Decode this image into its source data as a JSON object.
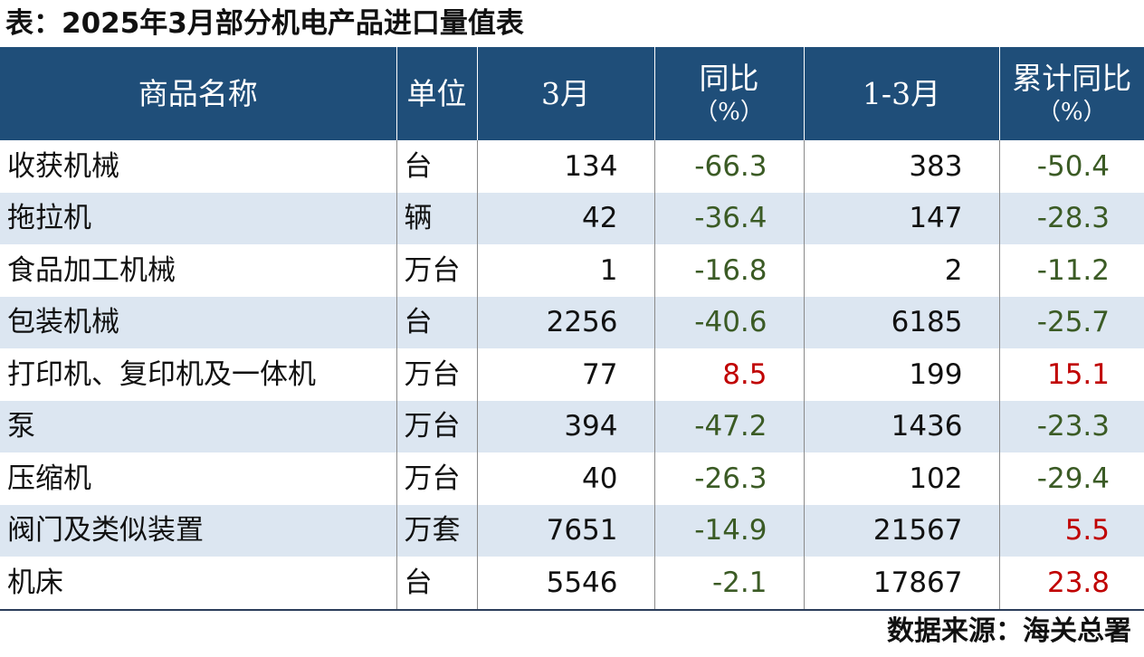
{
  "title": "表：2025年3月部分机电产品进口量值表",
  "source": "数据来源：海关总署",
  "colors": {
    "header_bg": "#1f4e79",
    "header_text": "#ffffff",
    "stripe_bg": "#dce6f1",
    "negative_text": "#3b5b25",
    "positive_text": "#c00000"
  },
  "columns": {
    "name": "商品名称",
    "unit": "单位",
    "march": "3月",
    "yoy": "同比",
    "yoy_unit": "（%）",
    "ytd": "1-3月",
    "ytd_yoy": "累计同比",
    "ytd_yoy_unit": "（%）"
  },
  "rows": [
    {
      "name": "收获机械",
      "unit": "台",
      "march": "134",
      "yoy": "-66.3",
      "ytd": "383",
      "ytd_yoy": "-50.4"
    },
    {
      "name": "拖拉机",
      "unit": "辆",
      "march": "42",
      "yoy": "-36.4",
      "ytd": "147",
      "ytd_yoy": "-28.3"
    },
    {
      "name": "食品加工机械",
      "unit": "万台",
      "march": "1",
      "yoy": "-16.8",
      "ytd": "2",
      "ytd_yoy": "-11.2"
    },
    {
      "name": "包装机械",
      "unit": "台",
      "march": "2256",
      "yoy": "-40.6",
      "ytd": "6185",
      "ytd_yoy": "-25.7"
    },
    {
      "name": "打印机、复印机及一体机",
      "unit": "万台",
      "march": "77",
      "yoy": "8.5",
      "ytd": "199",
      "ytd_yoy": "15.1"
    },
    {
      "name": "泵",
      "unit": "万台",
      "march": "394",
      "yoy": "-47.2",
      "ytd": "1436",
      "ytd_yoy": "-23.3"
    },
    {
      "name": "压缩机",
      "unit": "万台",
      "march": "40",
      "yoy": "-26.3",
      "ytd": "102",
      "ytd_yoy": "-29.4"
    },
    {
      "name": "阀门及类似装置",
      "unit": "万套",
      "march": "7651",
      "yoy": "-14.9",
      "ytd": "21567",
      "ytd_yoy": "5.5"
    },
    {
      "name": "机床",
      "unit": "台",
      "march": "5546",
      "yoy": "-2.1",
      "ytd": "17867",
      "ytd_yoy": "23.8"
    }
  ],
  "chart_data": {
    "type": "table",
    "title": "表：2025年3月部分机电产品进口量值表",
    "columns": [
      "商品名称",
      "单位",
      "3月",
      "同比（%）",
      "1-3月",
      "累计同比（%）"
    ],
    "rows": [
      [
        "收获机械",
        "台",
        134,
        -66.3,
        383,
        -50.4
      ],
      [
        "拖拉机",
        "辆",
        42,
        -36.4,
        147,
        -28.3
      ],
      [
        "食品加工机械",
        "万台",
        1,
        -16.8,
        2,
        -11.2
      ],
      [
        "包装机械",
        "台",
        2256,
        -40.6,
        6185,
        -25.7
      ],
      [
        "打印机、复印机及一体机",
        "万台",
        77,
        8.5,
        199,
        15.1
      ],
      [
        "泵",
        "万台",
        394,
        -47.2,
        1436,
        -23.3
      ],
      [
        "压缩机",
        "万台",
        40,
        -26.3,
        102,
        -29.4
      ],
      [
        "阀门及类似装置",
        "万套",
        7651,
        -14.9,
        21567,
        5.5
      ],
      [
        "机床",
        "台",
        5546,
        -2.1,
        17867,
        23.8
      ]
    ],
    "source": "数据来源：海关总署"
  }
}
